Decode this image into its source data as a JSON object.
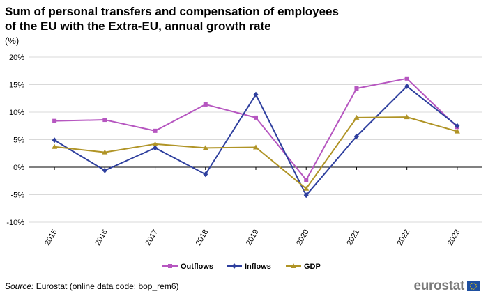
{
  "header": {
    "title": "Sum of personal transfers and compensation of employees\nof the EU with the Extra-EU, annual growth rate",
    "unit": "(%)"
  },
  "footer": {
    "source_label": "Source:",
    "source_text": " Eurostat (online data code: bop_rem6)",
    "logo_text": "eurostat"
  },
  "chart_data": {
    "type": "line",
    "categories": [
      "2015",
      "2016",
      "2017",
      "2018",
      "2019",
      "2020",
      "2021",
      "2022",
      "2023"
    ],
    "ylim": [
      -10,
      20
    ],
    "yticks": [
      20,
      15,
      10,
      5,
      0,
      -5,
      -10
    ],
    "ytick_labels": [
      "20%",
      "15%",
      "10%",
      "5%",
      "0%",
      "-5%",
      "-10%"
    ],
    "grid": true,
    "legend_position": "bottom",
    "series": [
      {
        "name": "Outflows",
        "marker": "square",
        "color": "#b656c0",
        "values": [
          8.4,
          8.6,
          6.6,
          11.4,
          9.0,
          -2.3,
          14.3,
          16.1,
          7.3
        ]
      },
      {
        "name": "Inflows",
        "marker": "diamond",
        "color": "#2e3f9e",
        "values": [
          4.9,
          -0.6,
          3.5,
          -1.3,
          13.2,
          -5.1,
          5.6,
          14.7,
          7.5
        ]
      },
      {
        "name": "GDP",
        "marker": "triangle",
        "color": "#b09426",
        "values": [
          3.7,
          2.7,
          4.2,
          3.5,
          3.6,
          -3.9,
          9.0,
          9.1,
          6.5
        ]
      }
    ]
  }
}
